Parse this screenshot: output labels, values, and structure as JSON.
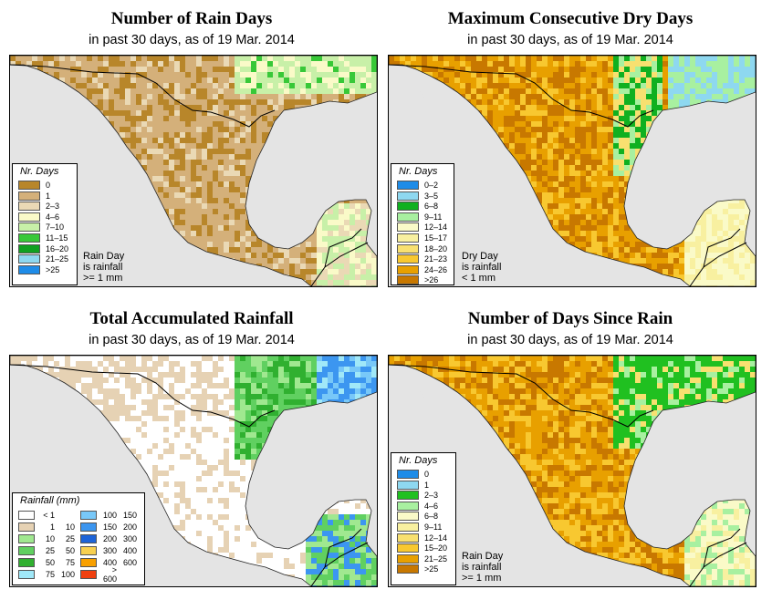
{
  "panels": [
    {
      "title": "Number of Rain Days",
      "subtitle": "in past 30 days, as of  19 Mar. 2014",
      "legend_title": "Nr. Days",
      "legend": [
        {
          "label": "0",
          "color": "#b8862a"
        },
        {
          "label": "1",
          "color": "#d4b07a"
        },
        {
          "label": "2–3",
          "color": "#ead9b5"
        },
        {
          "label": "4–6",
          "color": "#fafac8"
        },
        {
          "label": "7–10",
          "color": "#c8f0a8"
        },
        {
          "label": "11–15",
          "color": "#38c838"
        },
        {
          "label": "16–20",
          "color": "#10a020"
        },
        {
          "label": "21–25",
          "color": "#8ed8f0"
        },
        {
          "label": ">25",
          "color": "#1e8ce8"
        }
      ],
      "note": [
        "Rain Day",
        "is rainfall",
        ">= 1 mm"
      ]
    },
    {
      "title": "Maximum Consecutive Dry Days",
      "subtitle": "in past 30 days, as of  19 Mar. 2014",
      "legend_title": "Nr. Days",
      "legend": [
        {
          "label": "0–2",
          "color": "#1e8ce8"
        },
        {
          "label": "3–5",
          "color": "#8ed8f0"
        },
        {
          "label": "6–8",
          "color": "#10b020"
        },
        {
          "label": "9–11",
          "color": "#a8f0a0"
        },
        {
          "label": "12–14",
          "color": "#fafac8"
        },
        {
          "label": "15–17",
          "color": "#f8f0a0"
        },
        {
          "label": "18–20",
          "color": "#f8e070"
        },
        {
          "label": "21–23",
          "color": "#f8c830"
        },
        {
          "label": "24–26",
          "color": "#e8a000"
        },
        {
          "label": ">26",
          "color": "#c87800"
        }
      ],
      "note": [
        "Dry Day",
        "is rainfall",
        "< 1 mm"
      ]
    },
    {
      "title": "Total Accumulated Rainfall",
      "subtitle": "in past 30 days, as of  19 Mar. 2014",
      "legend_title": "Rainfall (mm)",
      "legend_left": [
        {
          "a": "< 1",
          "b": "",
          "color": "#ffffff"
        },
        {
          "a": "1",
          "b": "10",
          "color": "#e6d2b4"
        },
        {
          "a": "10",
          "b": "25",
          "color": "#a0e890"
        },
        {
          "a": "25",
          "b": "50",
          "color": "#60d060"
        },
        {
          "a": "50",
          "b": "75",
          "color": "#30b030"
        },
        {
          "a": "75",
          "b": "100",
          "color": "#a0e8f8"
        }
      ],
      "legend_right": [
        {
          "a": "100",
          "b": "150",
          "color": "#78c8f8"
        },
        {
          "a": "150",
          "b": "200",
          "color": "#3c96f0"
        },
        {
          "a": "200",
          "b": "300",
          "color": "#1e64d8"
        },
        {
          "a": "300",
          "b": "400",
          "color": "#f8d050"
        },
        {
          "a": "400",
          "b": "600",
          "color": "#f8a000"
        },
        {
          "a": "> 600",
          "b": "",
          "color": "#f04010"
        }
      ]
    },
    {
      "title": "Number of Days Since Rain",
      "subtitle": "in past 30 days, as of  19 Mar. 2014",
      "legend_title": "Nr. Days",
      "legend": [
        {
          "label": "0",
          "color": "#1e8ce8"
        },
        {
          "label": "1",
          "color": "#8ed8f0"
        },
        {
          "label": "2–3",
          "color": "#20c020"
        },
        {
          "label": "4–6",
          "color": "#a8f0a0"
        },
        {
          "label": "6–8",
          "color": "#fafac8"
        },
        {
          "label": "9–11",
          "color": "#f8f0a0"
        },
        {
          "label": "12–14",
          "color": "#f8e070"
        },
        {
          "label": "15–20",
          "color": "#f8c830"
        },
        {
          "label": "21–25",
          "color": "#e8a000"
        },
        {
          "label": ">25",
          "color": "#c87800"
        }
      ],
      "note": [
        "Rain Day",
        "is rainfall",
        ">= 1 mm"
      ]
    }
  ]
}
